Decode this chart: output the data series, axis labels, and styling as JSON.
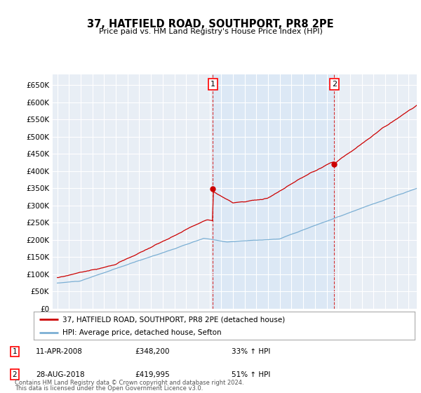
{
  "title": "37, HATFIELD ROAD, SOUTHPORT, PR8 2PE",
  "subtitle": "Price paid vs. HM Land Registry's House Price Index (HPI)",
  "ylim": [
    0,
    680000
  ],
  "yticks": [
    0,
    50000,
    100000,
    150000,
    200000,
    250000,
    300000,
    350000,
    400000,
    450000,
    500000,
    550000,
    600000,
    650000
  ],
  "hpi_color": "#7bafd4",
  "price_color": "#cc0000",
  "bg_color": "#e8eef5",
  "bg_shaded": "#dce8f5",
  "legend_line1": "37, HATFIELD ROAD, SOUTHPORT, PR8 2PE (detached house)",
  "legend_line2": "HPI: Average price, detached house, Sefton",
  "t1_year": 2008.28,
  "t1_price": 348200,
  "t2_year": 2018.65,
  "t2_price": 419995,
  "transaction1": {
    "label": "1",
    "date": "11-APR-2008",
    "price": "£348,200",
    "hpi": "33% ↑ HPI"
  },
  "transaction2": {
    "label": "2",
    "date": "28-AUG-2018",
    "price": "£419,995",
    "hpi": "51% ↑ HPI"
  },
  "footer1": "Contains HM Land Registry data © Crown copyright and database right 2024.",
  "footer2": "This data is licensed under the Open Government Licence v3.0."
}
